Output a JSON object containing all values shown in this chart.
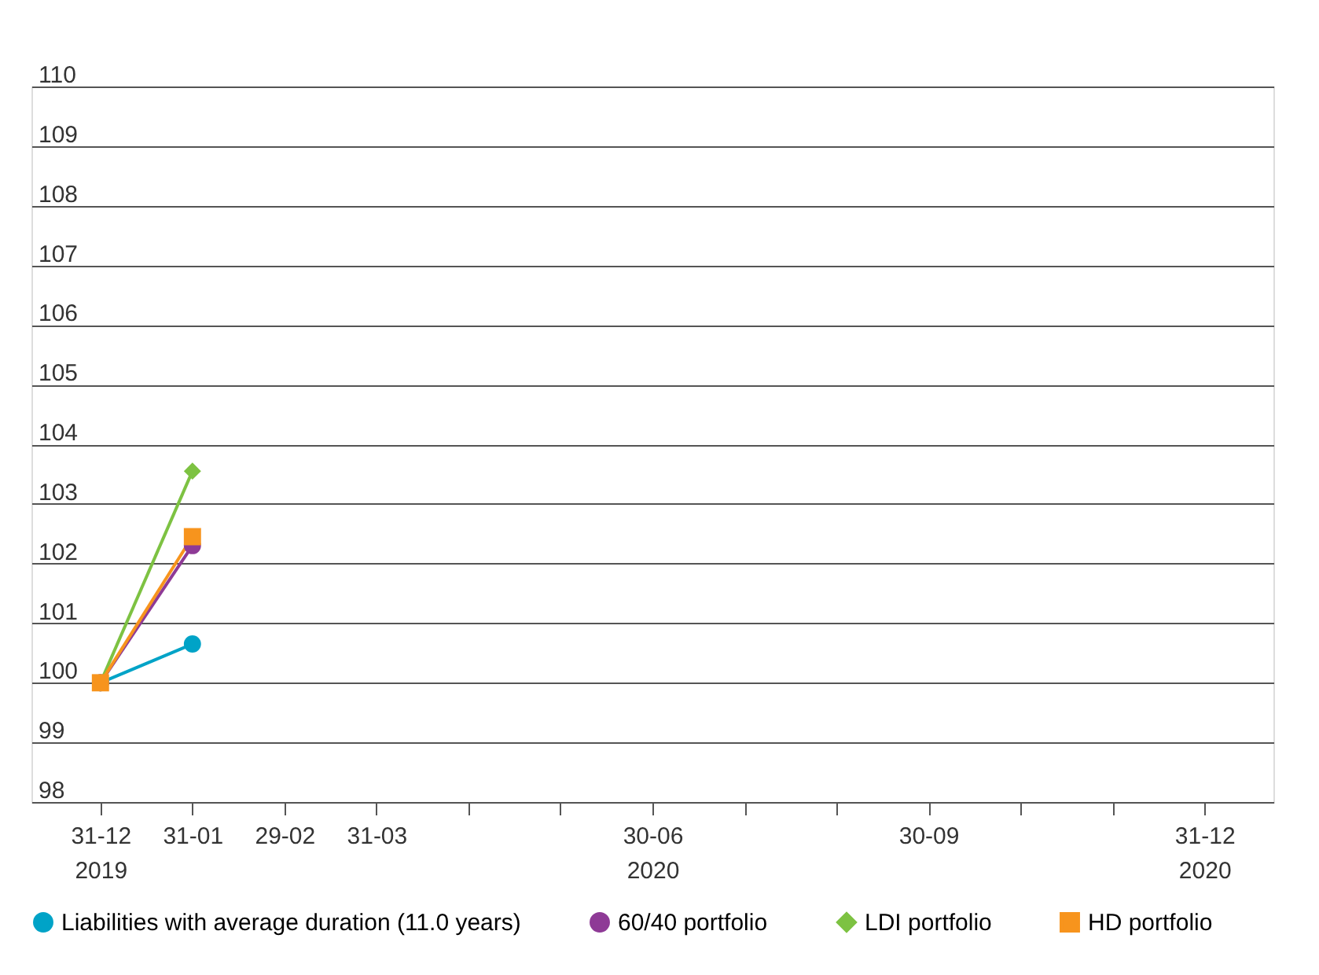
{
  "chart_data": {
    "type": "line",
    "categories": [
      "31-12\n2019",
      "31-01",
      "29-02",
      "31-03",
      null,
      null,
      "30-06\n2020",
      null,
      null,
      "30-09",
      null,
      null,
      "31-12\n2020"
    ],
    "series": [
      {
        "name": "Liabilities with average duration (11.0 years)",
        "color": "#00a3c7",
        "marker": "circle",
        "values": [
          100,
          100.65,
          null,
          null,
          null,
          null,
          null,
          null,
          null,
          null,
          null,
          null,
          null
        ]
      },
      {
        "name": "60/40 portfolio",
        "color": "#8e3a96",
        "marker": "circle",
        "values": [
          100,
          102.3,
          null,
          null,
          null,
          null,
          null,
          null,
          null,
          null,
          null,
          null,
          null
        ]
      },
      {
        "name": "LDI portfolio",
        "color": "#7dc242",
        "marker": "diamond",
        "values": [
          100,
          103.55,
          null,
          null,
          null,
          null,
          null,
          null,
          null,
          null,
          null,
          null,
          null
        ]
      },
      {
        "name": "HD portfolio",
        "color": "#f7941d",
        "marker": "square",
        "values": [
          100,
          102.45,
          null,
          null,
          null,
          null,
          null,
          null,
          null,
          null,
          null,
          null,
          null
        ]
      }
    ],
    "ylim": [
      98,
      110
    ],
    "yticks": [
      98,
      99,
      100,
      101,
      102,
      103,
      104,
      105,
      106,
      107,
      108,
      109,
      110
    ],
    "grid": "y",
    "legend": "bottom"
  }
}
